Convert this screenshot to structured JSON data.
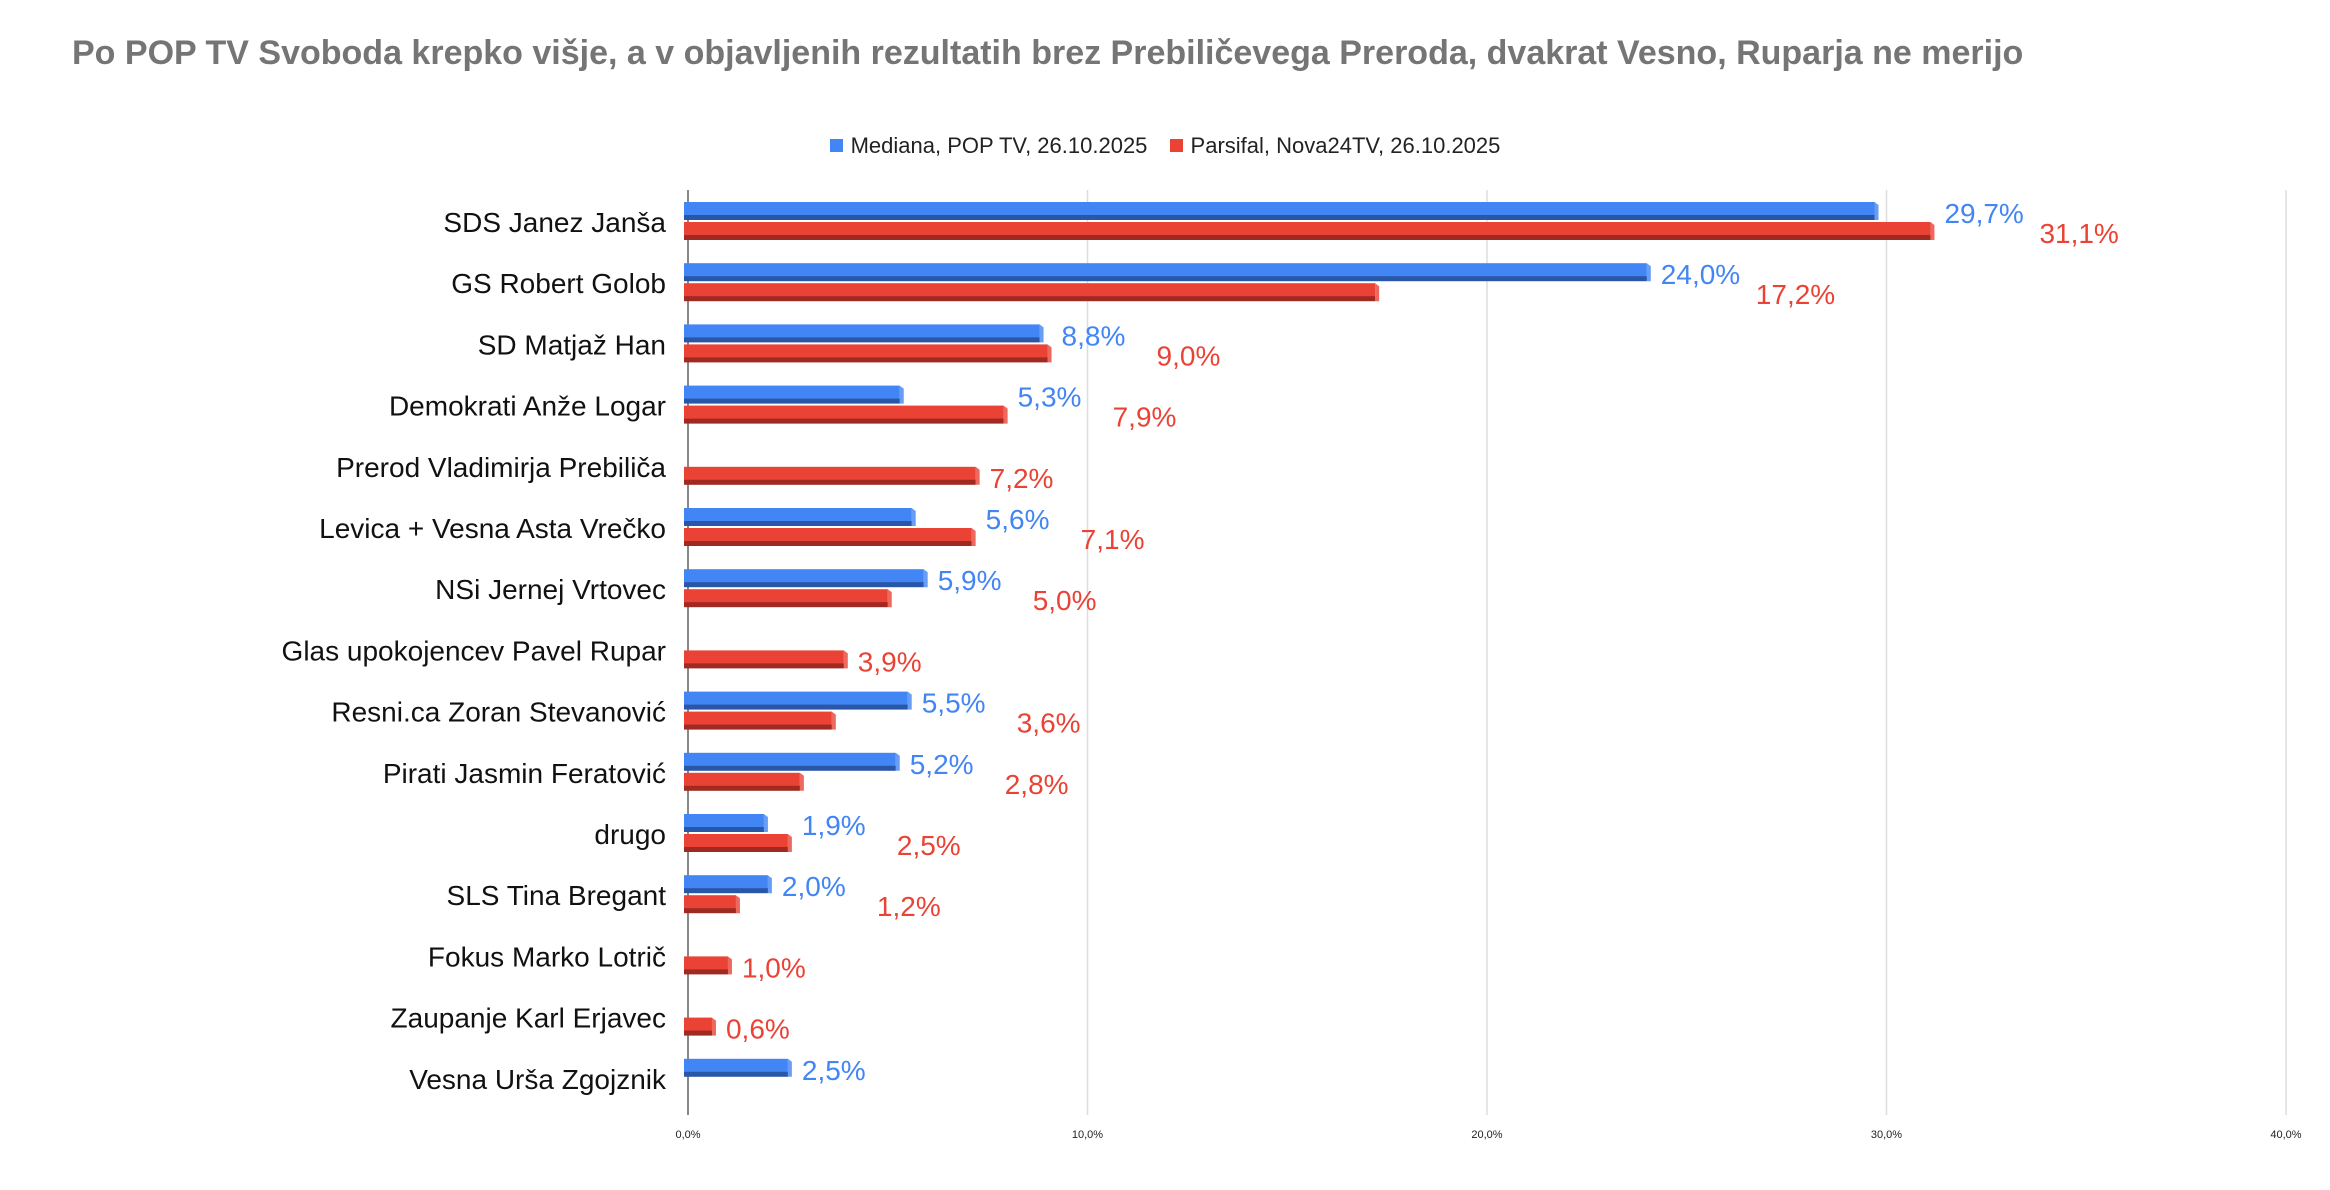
{
  "chart_data": {
    "type": "bar",
    "orientation": "horizontal",
    "title": "Po POP TV Svoboda krepko višje, a v objavljenih rezultatih brez Prebiličevega Preroda, dvakrat Vesno, Ruparja ne merijo",
    "categories": [
      "SDS Janez Janša",
      "GS Robert Golob",
      "SD Matjaž Han",
      "Demokrati Anže Logar",
      "Prerod Vladimirja Prebiliča",
      "Levica + Vesna  Asta Vrečko",
      "NSi Jernej Vrtovec",
      "Glas upokojencev Pavel Rupar",
      "Resni.ca Zoran Stevanović",
      "Pirati Jasmin Feratović",
      "drugo",
      "SLS Tina Bregant",
      "Fokus Marko Lotrič",
      "Zaupanje Karl Erjavec",
      "Vesna Urša Zgojznik"
    ],
    "series": [
      {
        "name": "Mediana, POP TV, 26.10.2025",
        "color": "#4285f4",
        "dark": "#2a56a8",
        "values": [
          29.7,
          24.0,
          8.8,
          5.3,
          null,
          5.6,
          5.9,
          null,
          5.5,
          5.2,
          1.9,
          2.0,
          null,
          null,
          2.5
        ],
        "labels": [
          "29,7%",
          "24,0%",
          "8,8%",
          "5,3%",
          null,
          "5,6%",
          "5,9%",
          null,
          "5,5%",
          "5,2%",
          "1,9%",
          "2,0%",
          null,
          null,
          "2,5%"
        ]
      },
      {
        "name": "Parsifal, Nova24TV, 26.10.2025",
        "color": "#ea4335",
        "dark": "#9e2a22",
        "values": [
          31.1,
          17.2,
          9.0,
          7.9,
          7.2,
          7.1,
          5.0,
          3.9,
          3.6,
          2.8,
          2.5,
          1.2,
          1.0,
          0.6,
          null
        ],
        "labels": [
          "31,1%",
          "17,2%",
          "9,0%",
          "7,9%",
          "7,2%",
          "7,1%",
          "5,0%",
          "3,9%",
          "3,6%",
          "2,8%",
          "2,5%",
          "1,2%",
          "1,0%",
          "0,6%",
          null
        ]
      }
    ],
    "xlim": [
      0,
      40
    ],
    "xticks": [
      0,
      10,
      20,
      30,
      40
    ],
    "xtick_labels": [
      "0,0%",
      "10,0%",
      "20,0%",
      "30,0%",
      "40,0%"
    ],
    "grid": true,
    "legend": "top-center"
  }
}
